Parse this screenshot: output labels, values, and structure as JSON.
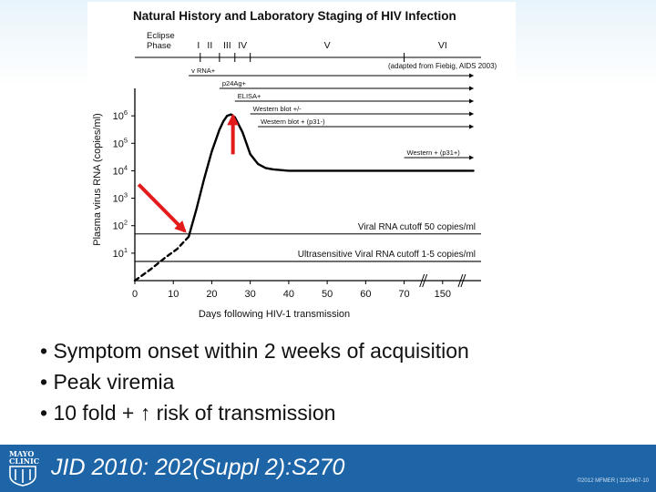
{
  "slide": {
    "bullets": [
      "• Symptom onset within 2 weeks of acquisition",
      "• Peak viremia",
      "• 10 fold + ↑ risk of transmission"
    ],
    "citation": "JID 2010: 202(Suppl 2):S270",
    "logo_text": [
      "MAYO",
      "CLINIC"
    ],
    "copyright": "©2012 MFMER | 3220467-10",
    "colors": {
      "footer": "#1e65a7",
      "arrow": "#e31b1b",
      "curve": "#000000"
    }
  },
  "chart_data": {
    "type": "line",
    "title": "Natural History and Laboratory Staging of HIV Infection",
    "xlabel": "Days following HIV-1 transmission",
    "ylabel": "Plasma virus RNA (copies/ml)",
    "x_ticks": [
      "0",
      "10",
      "20",
      "30",
      "40",
      "50",
      "60",
      "70",
      "150"
    ],
    "x_tick_values": [
      0,
      10,
      20,
      30,
      40,
      50,
      60,
      70,
      80
    ],
    "xlim": [
      0,
      90
    ],
    "y_ticks": [
      "10^1",
      "10^2",
      "10^3",
      "10^4",
      "10^5",
      "10^6"
    ],
    "y_tick_values": [
      1,
      2,
      3,
      4,
      5,
      6
    ],
    "ylim": [
      0,
      7
    ],
    "y_scale": "log10",
    "axis_breaks_at_x": [
      75,
      85
    ],
    "stages": {
      "header": [
        "Eclipse",
        "Phase"
      ],
      "labels": [
        "I",
        "II",
        "III",
        "IV",
        "V",
        "VI"
      ],
      "boundaries": [
        17,
        22,
        26,
        30,
        70
      ]
    },
    "source_note": "(adapted from Fiebig, AIDS 2003)",
    "series": [
      {
        "style": "solid",
        "x": [
          14,
          16,
          18,
          20,
          22,
          23,
          24,
          25,
          26,
          28,
          30,
          32,
          34,
          36,
          40,
          50,
          60,
          70,
          88
        ],
        "y": [
          1.6,
          2.6,
          3.7,
          4.7,
          5.5,
          5.8,
          6.0,
          6.05,
          5.95,
          5.4,
          4.6,
          4.25,
          4.1,
          4.05,
          4.0,
          4.0,
          4.0,
          4.0,
          4.0
        ]
      },
      {
        "style": "dashed",
        "x": [
          0,
          4,
          8,
          11,
          14
        ],
        "y": [
          0.0,
          0.4,
          0.85,
          1.15,
          1.6
        ]
      }
    ],
    "cutoffs": [
      {
        "label": "Viral RNA cutoff 50 copies/ml",
        "y": 1.7
      },
      {
        "label": "Ultrasensitive Viral RNA cutoff 1-5 copies/ml",
        "y": 0.7
      }
    ],
    "assays": [
      {
        "label": "v RNA+",
        "x_start": 14,
        "x_end": 88
      },
      {
        "label": "p24Ag+",
        "x_start": 22,
        "x_end": 88
      },
      {
        "label": "ELISA+",
        "x_start": 26,
        "x_end": 88
      },
      {
        "label": "Western blot +/-",
        "x_start": 30,
        "x_end": 88
      },
      {
        "label": "Western blot + (p31-)",
        "x_start": 32,
        "x_end": 88
      },
      {
        "label": "Western + (p31+)",
        "x_start": 70,
        "x_end": 88
      }
    ],
    "annotations": [
      {
        "shape": "arrow",
        "color": "#e31b1b",
        "from": [
          1,
          3.5
        ],
        "to": [
          13,
          1.8
        ]
      },
      {
        "shape": "arrow",
        "color": "#e31b1b",
        "from": [
          25.5,
          4.6
        ],
        "to": [
          25.5,
          6.0
        ]
      }
    ]
  }
}
